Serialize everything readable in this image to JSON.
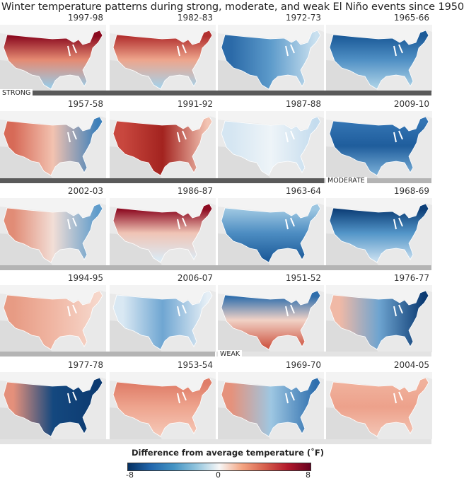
{
  "title": "Winter temperature patterns during strong, moderate, and weak El Niño events since 1950",
  "rows": [
    {
      "category_label": "STRONG",
      "panels": [
        {
          "year": "1997-98",
          "direction": "vertical",
          "colors": [
            "#8b0a1f",
            "#e58a72",
            "#9cc8e2"
          ]
        },
        {
          "year": "1982-83",
          "direction": "vertical",
          "colors": [
            "#b2302f",
            "#eea58c",
            "#a9cfe5"
          ]
        },
        {
          "year": "1972-73",
          "direction": "horizontal",
          "colors": [
            "#2b6aa8",
            "#5d9bcb",
            "#c9e0ef"
          ]
        },
        {
          "year": "1965-66",
          "direction": "vertical",
          "colors": [
            "#1b5a98",
            "#4f8fc4",
            "#a8cfe5"
          ]
        }
      ]
    },
    {
      "category_label": "MODERATE",
      "panels": [
        {
          "year": "1957-58",
          "direction": "horizontal",
          "colors": [
            "#d76a57",
            "#f2c2b0",
            "#3b7fba"
          ]
        },
        {
          "year": "1991-92",
          "direction": "horizontal",
          "colors": [
            "#c8473e",
            "#a3231f",
            "#f3c4b3"
          ]
        },
        {
          "year": "1987-88",
          "direction": "horizontal",
          "colors": [
            "#d5e6f2",
            "#eef4f8",
            "#c4dcee"
          ]
        },
        {
          "year": "2009-10",
          "direction": "vertical",
          "colors": [
            "#3374b3",
            "#1f5d9c",
            "#73a9d3"
          ]
        }
      ]
    },
    {
      "category_label": "",
      "panels": [
        {
          "year": "2002-03",
          "direction": "horizontal",
          "colors": [
            "#e18c76",
            "#f2ded6",
            "#5d9bcb"
          ]
        },
        {
          "year": "1986-87",
          "direction": "vertical",
          "colors": [
            "#8e0c22",
            "#f0c4b5",
            "#dbe9f3"
          ]
        },
        {
          "year": "1963-64",
          "direction": "vertical",
          "colors": [
            "#9cc6e1",
            "#4d8dc2",
            "#1d5b9a"
          ]
        },
        {
          "year": "1968-69",
          "direction": "vertical",
          "colors": [
            "#0d3f78",
            "#5295c8",
            "#c4dcee"
          ]
        }
      ]
    },
    {
      "category_label": "WEAK",
      "panels": [
        {
          "year": "1994-95",
          "direction": "horizontal",
          "colors": [
            "#e79b84",
            "#f0b6a3",
            "#f6d7cb"
          ]
        },
        {
          "year": "2006-07",
          "direction": "horizontal",
          "colors": [
            "#d9e8f3",
            "#6fa6d2",
            "#e6eff6"
          ]
        },
        {
          "year": "1951-52",
          "direction": "vertical",
          "colors": [
            "#2f6eac",
            "#f1d2c6",
            "#cf5a47"
          ]
        },
        {
          "year": "1976-77",
          "direction": "horizontal",
          "colors": [
            "#f0b9a6",
            "#6ea4d0",
            "#0b3a72"
          ]
        }
      ]
    },
    {
      "category_label": "",
      "panels": [
        {
          "year": "1977-78",
          "direction": "horizontal",
          "colors": [
            "#e4907b",
            "#14487f",
            "#0c3a70"
          ]
        },
        {
          "year": "1953-54",
          "direction": "vertical",
          "colors": [
            "#df7d68",
            "#eea48e",
            "#f5c6b5"
          ]
        },
        {
          "year": "1969-70",
          "direction": "horizontal",
          "colors": [
            "#e5927c",
            "#9ec7e2",
            "#2f6fae"
          ]
        },
        {
          "year": "2004-05",
          "direction": "vertical",
          "colors": [
            "#f0b19c",
            "#eda18b",
            "#f3c2b1"
          ]
        }
      ]
    }
  ],
  "legend": {
    "title": "Difference from average temperature (˚F)",
    "min_label": "-8",
    "mid_label": "0",
    "max_label": "8",
    "colors": [
      "#053061",
      "#f7f7f7",
      "#67001f"
    ]
  },
  "bar_colors": {
    "strong": "#5a5a5a",
    "moderate": "#b4b4b4",
    "weak": "#e3e3e3"
  }
}
